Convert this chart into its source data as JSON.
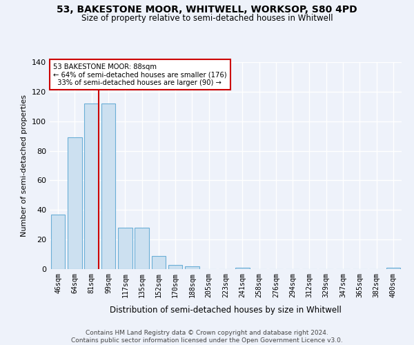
{
  "title1": "53, BAKESTONE MOOR, WHITWELL, WORKSOP, S80 4PD",
  "title2": "Size of property relative to semi-detached houses in Whitwell",
  "xlabel": "Distribution of semi-detached houses by size in Whitwell",
  "ylabel": "Number of semi-detached properties",
  "bar_labels": [
    "46sqm",
    "64sqm",
    "81sqm",
    "99sqm",
    "117sqm",
    "135sqm",
    "152sqm",
    "170sqm",
    "188sqm",
    "205sqm",
    "223sqm",
    "241sqm",
    "258sqm",
    "276sqm",
    "294sqm",
    "312sqm",
    "329sqm",
    "347sqm",
    "365sqm",
    "382sqm",
    "400sqm"
  ],
  "bar_values": [
    37,
    89,
    112,
    112,
    28,
    28,
    9,
    3,
    2,
    0,
    0,
    1,
    0,
    0,
    0,
    0,
    0,
    0,
    0,
    0,
    1
  ],
  "bar_color": "#cce0f0",
  "bar_edge_color": "#6aaed6",
  "red_line_bin_index": 2,
  "annotation_text": "53 BAKESTONE MOOR: 88sqm\n← 64% of semi-detached houses are smaller (176)\n  33% of semi-detached houses are larger (90) →",
  "annotation_box_color": "#ffffff",
  "annotation_box_edge": "#cc0000",
  "red_line_color": "#cc0000",
  "ylim": [
    0,
    140
  ],
  "yticks": [
    0,
    20,
    40,
    60,
    80,
    100,
    120,
    140
  ],
  "background_color": "#eef2fa",
  "grid_color": "#ffffff",
  "footer1": "Contains HM Land Registry data © Crown copyright and database right 2024.",
  "footer2": "Contains public sector information licensed under the Open Government Licence v3.0."
}
